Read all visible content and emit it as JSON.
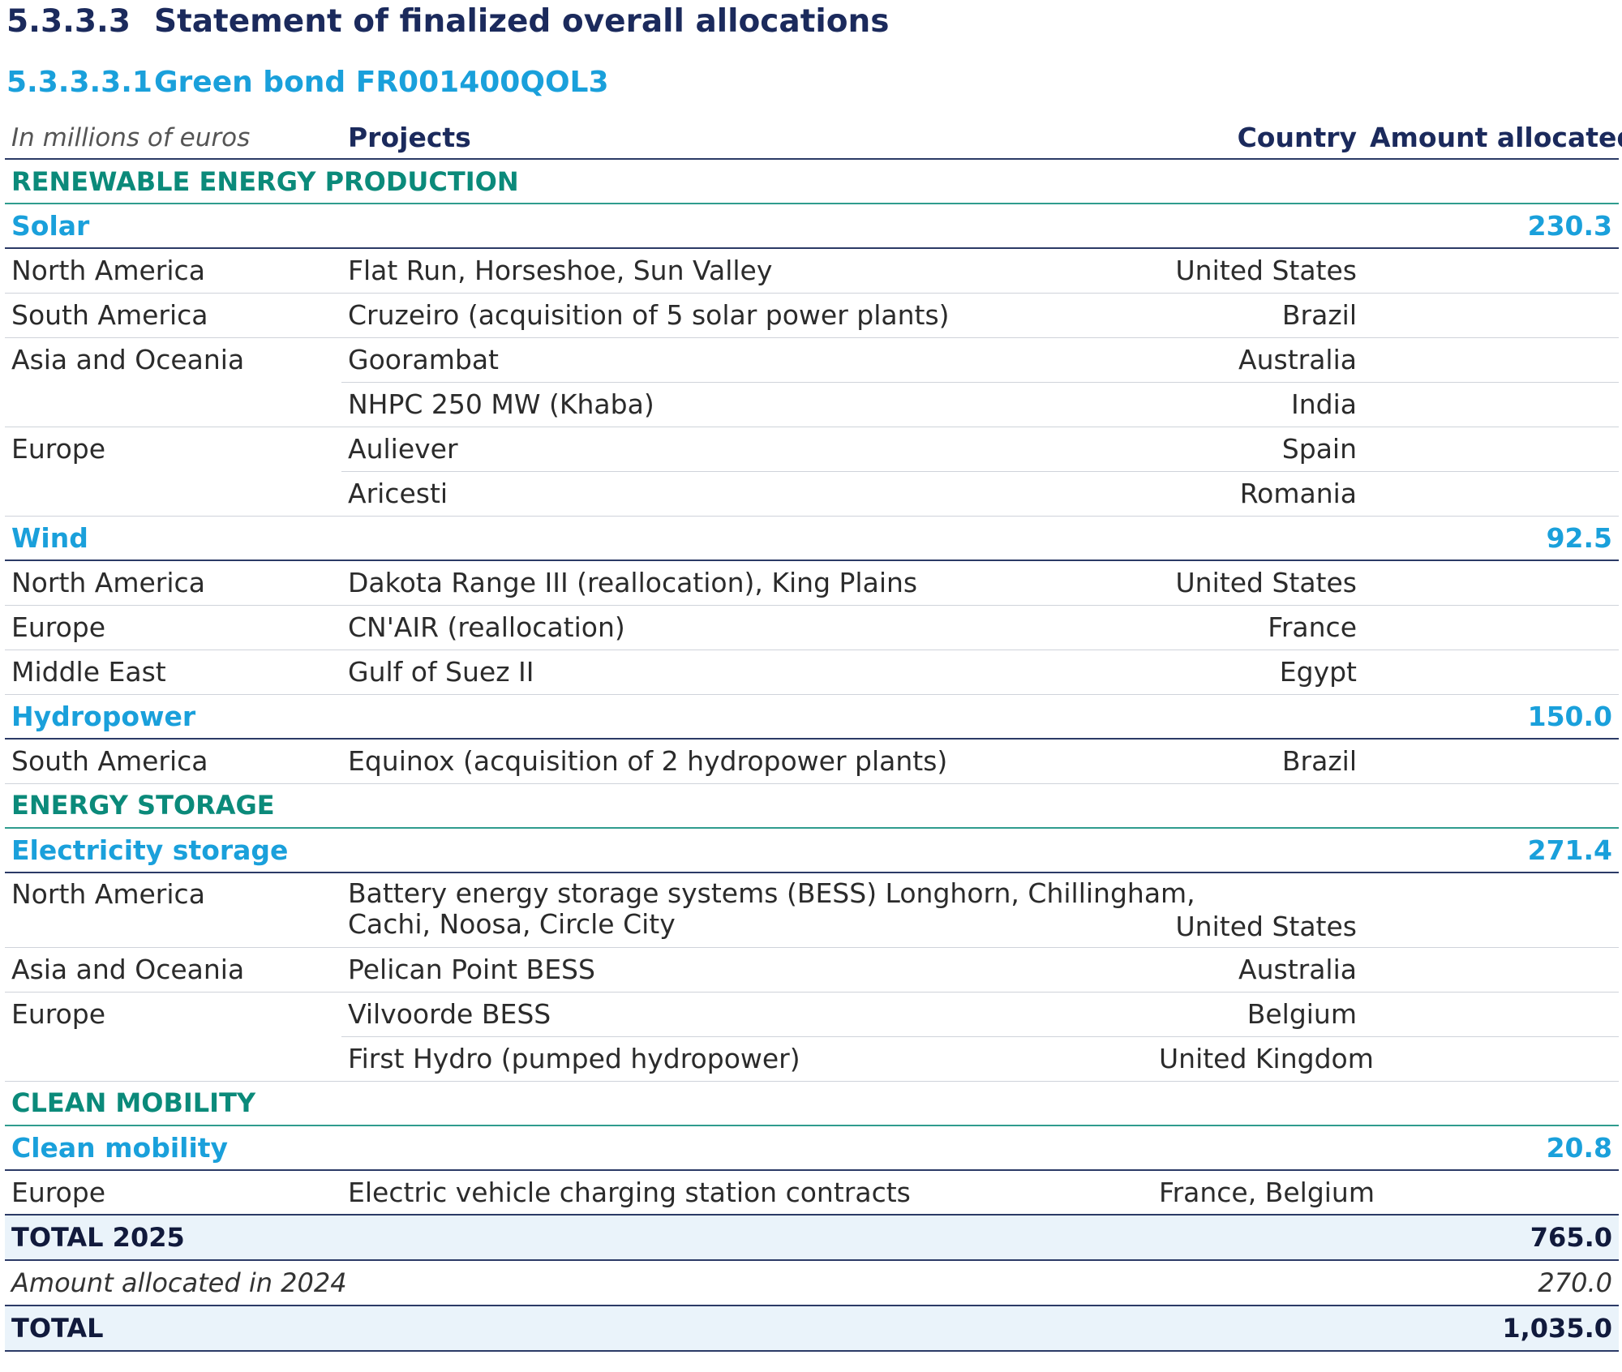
{
  "heading": {
    "number": "5.3.3.3",
    "title": "Statement of finalized overall allocations"
  },
  "subheading": {
    "number": "5.3.3.3.1",
    "title": "Green bond FR001400QOL3"
  },
  "table_header": {
    "unit": "In millions of euros",
    "projects": "Projects",
    "country": "Country",
    "amount": "Amount allocated"
  },
  "renewable": {
    "label": "RENEWABLE ENERGY PRODUCTION",
    "solar": {
      "label": "Solar",
      "amount": "230.3",
      "rows": [
        {
          "region": "North America",
          "project": "Flat Run, Horseshoe, Sun Valley",
          "country": "United States"
        },
        {
          "region": "South America",
          "project": "Cruzeiro (acquisition of 5 solar power plants)",
          "country": "Brazil"
        },
        {
          "region": "Asia and Oceania",
          "project": "Goorambat",
          "country": "Australia"
        },
        {
          "region": "",
          "project": "NHPC 250 MW (Khaba)",
          "country": "India"
        },
        {
          "region": "Europe",
          "project": "Auliever",
          "country": "Spain"
        },
        {
          "region": "",
          "project": "Aricesti",
          "country": "Romania"
        }
      ]
    },
    "wind": {
      "label": "Wind",
      "amount": "92.5",
      "rows": [
        {
          "region": "North America",
          "project": "Dakota Range III (reallocation), King Plains",
          "country": "United States"
        },
        {
          "region": "Europe",
          "project": "CN'AIR (reallocation)",
          "country": "France"
        },
        {
          "region": "Middle East",
          "project": "Gulf of Suez II",
          "country": "Egypt"
        }
      ]
    },
    "hydro": {
      "label": "Hydropower",
      "amount": "150.0",
      "rows": [
        {
          "region": "South America",
          "project": "Equinox (acquisition of 2 hydropower plants)",
          "country": "Brazil"
        }
      ]
    }
  },
  "storage": {
    "label": "ENERGY STORAGE",
    "electricity": {
      "label": "Electricity storage",
      "amount": "271.4",
      "rows": [
        {
          "region": "North America",
          "project_line1": "Battery energy storage systems (BESS) Longhorn, Chillingham,",
          "project_line2": "Cachi, Noosa, Circle City",
          "country": "United States"
        },
        {
          "region": "Asia and Oceania",
          "project": "Pelican Point BESS",
          "country": "Australia"
        },
        {
          "region": "Europe",
          "project": "Vilvoorde BESS",
          "country": "Belgium"
        },
        {
          "region": "",
          "project": "First Hydro (pumped hydropower)",
          "country": "United Kingdom"
        }
      ]
    }
  },
  "mobility": {
    "label": "CLEAN MOBILITY",
    "clean": {
      "label": "Clean mobility",
      "amount": "20.8",
      "rows": [
        {
          "region": "Europe",
          "project": "Electric vehicle charging station contracts",
          "country": "France, Belgium"
        }
      ]
    }
  },
  "totals": {
    "total_2025_label": "TOTAL 2025",
    "total_2025_value": "765.0",
    "prev_label": "Amount allocated in 2024",
    "prev_value": "270.0",
    "total_label": "TOTAL",
    "total_value": "1,035.0"
  }
}
